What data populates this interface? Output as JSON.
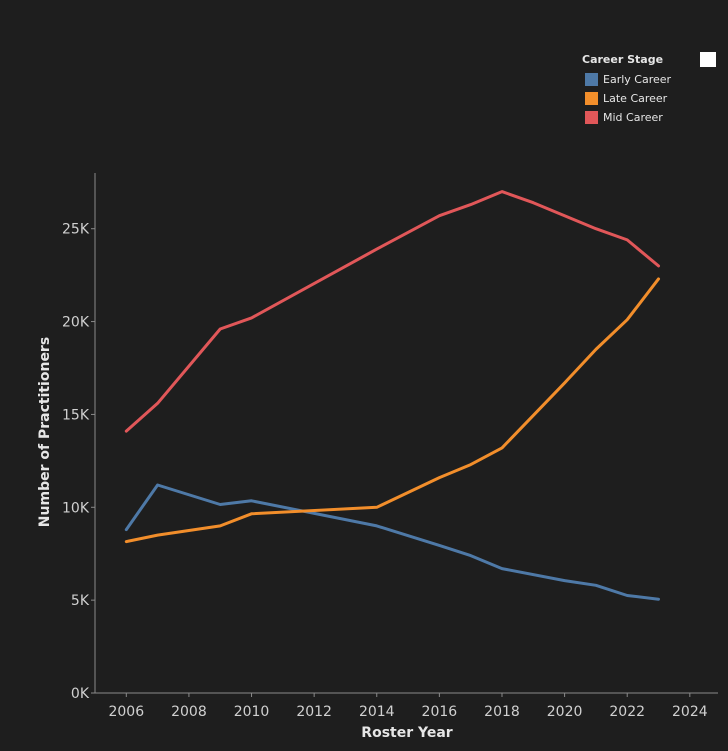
{
  "legend": {
    "title": "Career Stage",
    "items": [
      {
        "label": "Early Career",
        "color": "#4e79a7"
      },
      {
        "label": "Late Career",
        "color": "#f28e2b"
      },
      {
        "label": "Mid Career",
        "color": "#e15759"
      }
    ]
  },
  "chart_data": {
    "type": "line",
    "title": "",
    "xlabel": "Roster Year",
    "ylabel": "Number of Practitioners",
    "xlim": [
      2005,
      2024.9
    ],
    "ylim": [
      0,
      28000
    ],
    "xticks": [
      2006,
      2008,
      2010,
      2012,
      2014,
      2016,
      2018,
      2020,
      2022,
      2024
    ],
    "xtick_labels": [
      "2006",
      "2008",
      "2010",
      "2012",
      "2014",
      "2016",
      "2018",
      "2020",
      "2022",
      "2024"
    ],
    "yticks": [
      0,
      5000,
      10000,
      15000,
      20000,
      25000
    ],
    "ytick_labels": [
      "0K",
      "5K",
      "10K",
      "15K",
      "20K",
      "25K"
    ],
    "grid": false,
    "legend_position": "top-right",
    "series": [
      {
        "name": "Early Career",
        "color": "#4e79a7",
        "points": [
          [
            2006,
            8800
          ],
          [
            2007,
            11200
          ],
          [
            2009,
            10150
          ],
          [
            2010,
            10350
          ],
          [
            2014,
            9000
          ],
          [
            2016,
            7950
          ],
          [
            2017,
            7400
          ],
          [
            2018,
            6700
          ],
          [
            2020,
            6050
          ],
          [
            2021,
            5800
          ],
          [
            2022,
            5250
          ],
          [
            2023,
            5050
          ]
        ]
      },
      {
        "name": "Late Career",
        "color": "#f28e2b",
        "points": [
          [
            2006,
            8150
          ],
          [
            2007,
            8500
          ],
          [
            2009,
            9000
          ],
          [
            2010,
            9650
          ],
          [
            2014,
            10000
          ],
          [
            2016,
            11600
          ],
          [
            2017,
            12300
          ],
          [
            2018,
            13200
          ],
          [
            2020,
            16700
          ],
          [
            2021,
            18500
          ],
          [
            2022,
            20100
          ],
          [
            2023,
            22300
          ]
        ]
      },
      {
        "name": "Mid Career",
        "color": "#e15759",
        "points": [
          [
            2006,
            14100
          ],
          [
            2007,
            15600
          ],
          [
            2009,
            19600
          ],
          [
            2010,
            20200
          ],
          [
            2014,
            23900
          ],
          [
            2016,
            25700
          ],
          [
            2017,
            26300
          ],
          [
            2018,
            27000
          ],
          [
            2019,
            26400
          ],
          [
            2020,
            25700
          ],
          [
            2021,
            25000
          ],
          [
            2022,
            24400
          ],
          [
            2023,
            23000
          ]
        ]
      }
    ]
  }
}
